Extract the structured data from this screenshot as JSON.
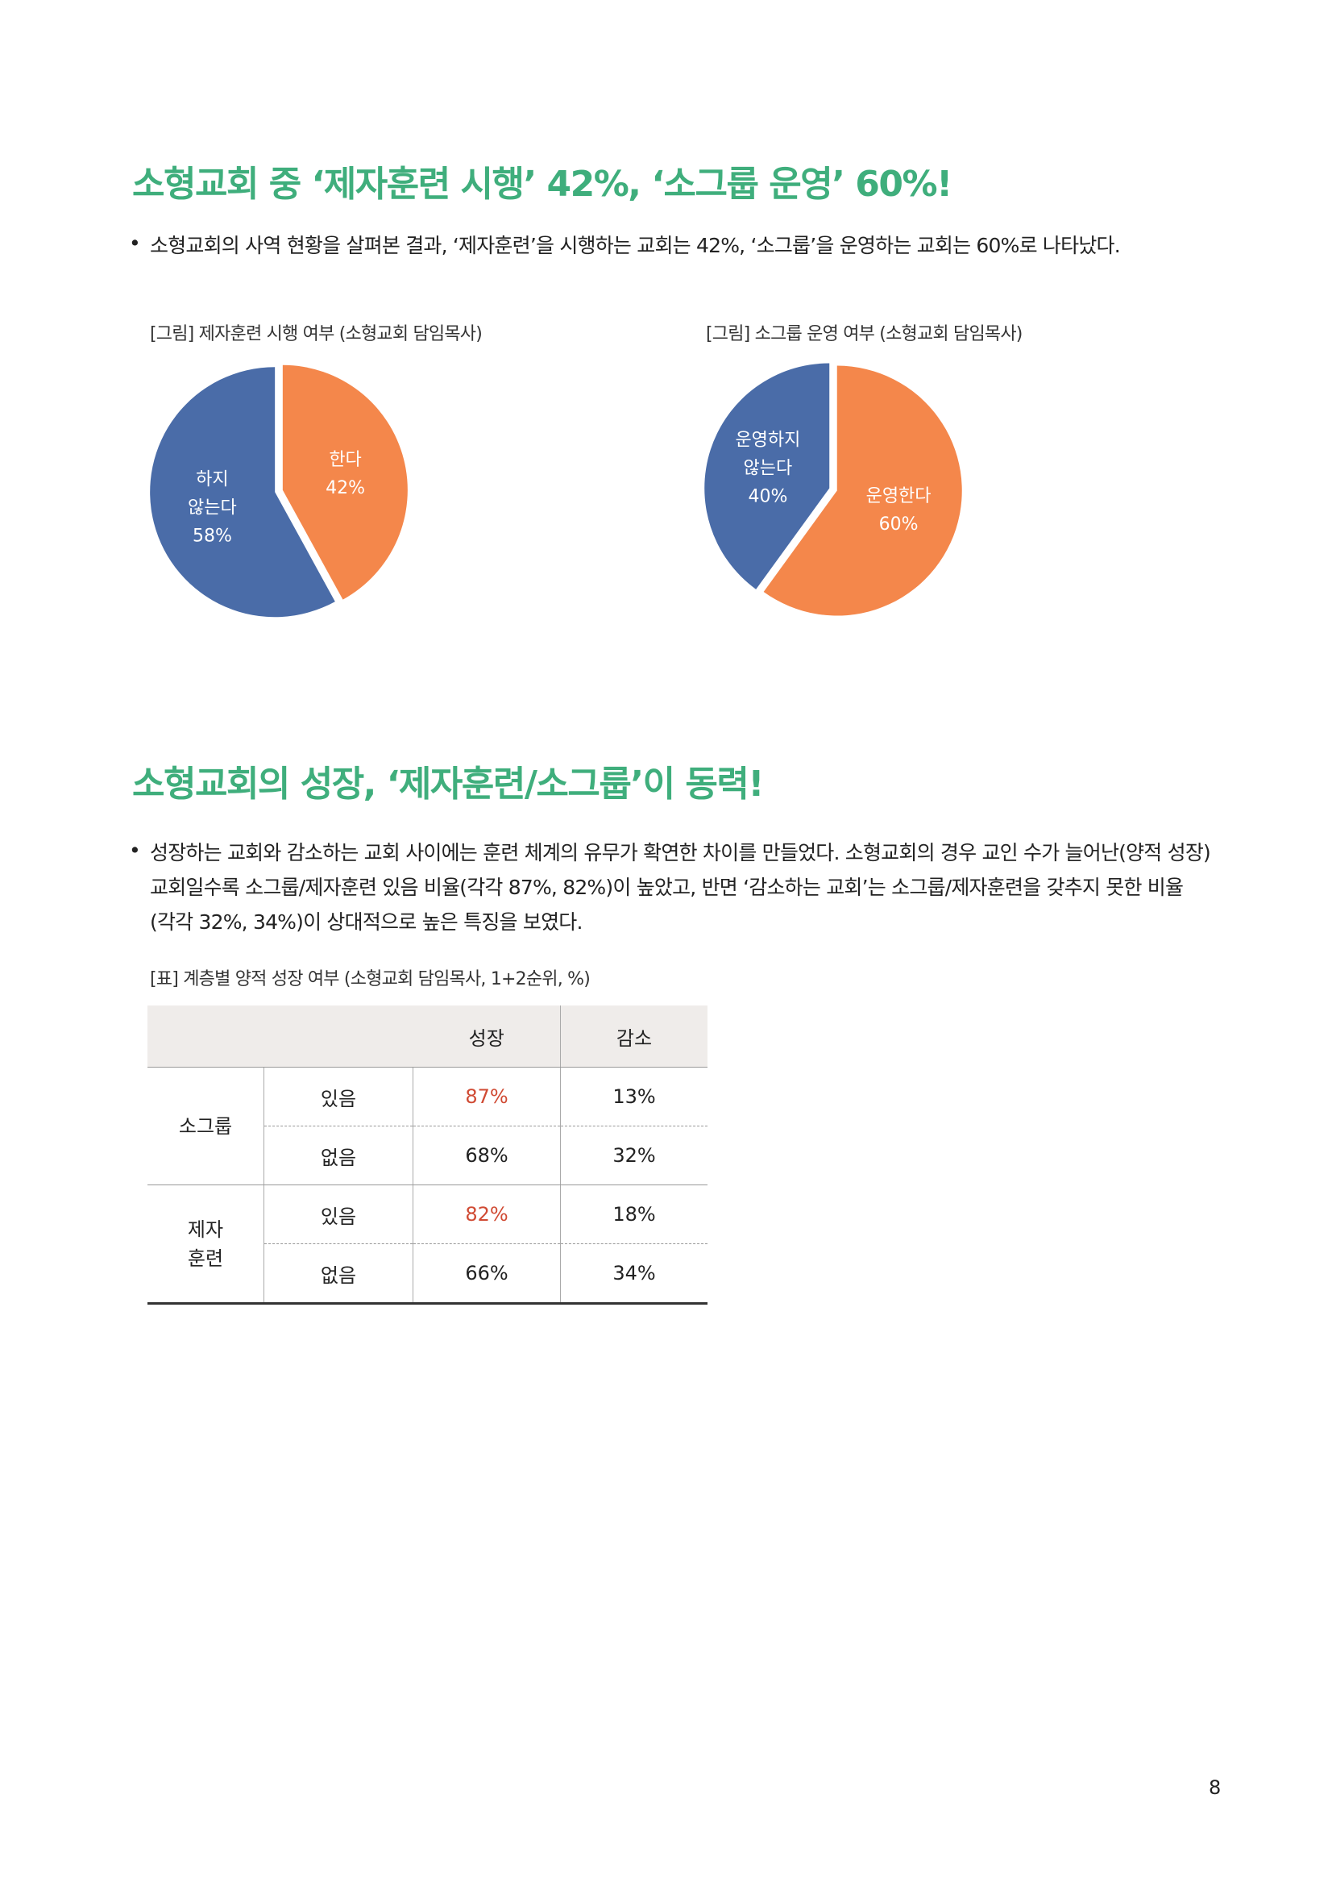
{
  "section1": {
    "heading": "소형교회 중 ‘제자훈련 시행’ 42%, ‘소그룹 운영’ 60%!",
    "bullet": "•",
    "text": "소형교회의 사역 현황을 살펴본 결과, ‘제자훈련’을 시행하는 교회는 42%, ‘소그룹’을 운영하는 교회는 60%로 나타났다."
  },
  "chart_data": [
    {
      "type": "pie",
      "title": "[그림] 제자훈련 시행 여부 (소형교회 담임목사)",
      "categories": [
        "한다",
        "하지\n않는다"
      ],
      "values": [
        42,
        58
      ],
      "value_labels": [
        "42%",
        "58%"
      ],
      "colors": [
        "#f4874b",
        "#4a6ca8"
      ]
    },
    {
      "type": "pie",
      "title": "[그림] 소그룹 운영 여부 (소형교회 담임목사)",
      "categories": [
        "운영한다",
        "운영하지\n않는다"
      ],
      "values": [
        60,
        40
      ],
      "value_labels": [
        "60%",
        "40%"
      ],
      "colors": [
        "#f4874b",
        "#4a6ca8"
      ]
    }
  ],
  "section2": {
    "heading": "소형교회의 성장, ‘제자훈련/소그룹’이 동력!",
    "bullet": "•",
    "text": "성장하는 교회와 감소하는 교회 사이에는 훈련 체계의 유무가 확연한 차이를 만들었다. 소형교회의 경우 교인 수가 늘어난(양적 성장) 교회일수록 소그룹/제자훈련 있음 비율(각각 87%, 82%)이 높았고, 반면 ‘감소하는 교회’는 소그룹/제자훈련을 갖추지 못한 비율(각각 32%, 34%)이 상대적으로 높은 특징을 보였다."
  },
  "table": {
    "caption": "[표] 계층별 양적 성장 여부 (소형교회 담임목사, 1+2순위, %)",
    "header": [
      "성장",
      "감소"
    ],
    "groups": [
      {
        "label": "소그룹",
        "rows": [
          {
            "label": "있음",
            "values": [
              "87%",
              "13%"
            ]
          },
          {
            "label": "없음",
            "values": [
              "68%",
              "32%"
            ]
          }
        ]
      },
      {
        "label": "제자\n훈련",
        "rows": [
          {
            "label": "있음",
            "values": [
              "82%",
              "18%"
            ]
          },
          {
            "label": "없음",
            "values": [
              "66%",
              "34%"
            ]
          }
        ]
      }
    ]
  },
  "page_number": "8"
}
